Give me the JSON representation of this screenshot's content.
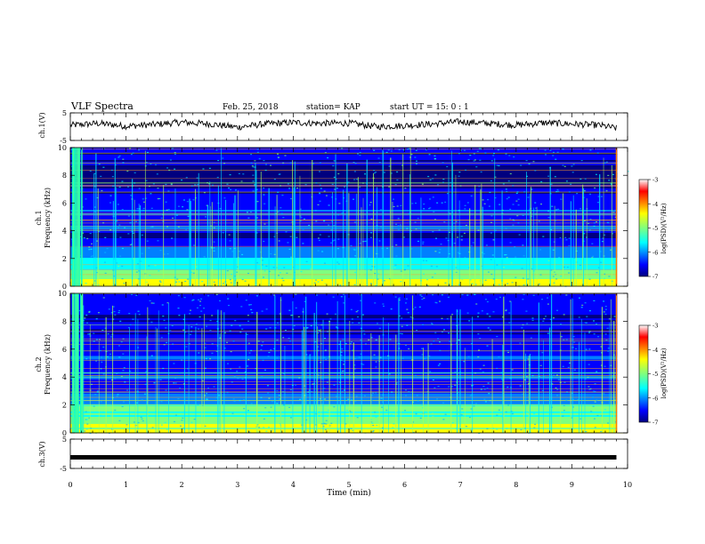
{
  "header": {
    "title": "VLF Spectra",
    "date": "Feb. 25, 2018",
    "station": "station= KAP",
    "start_ut": "start  UT =   15: 0   : 1"
  },
  "panels": {
    "ch1_wave_label": "ch.1(V)",
    "ch1_spec_label_a": "ch.1",
    "ch1_spec_label_b": "Frequency  (kHz)",
    "ch2_spec_label_a": "ch.2",
    "ch2_spec_label_b": "Frequency  (kHz)",
    "ch3_wave_label": "ch.3(V)",
    "colorbar_label": "log(PSD)(V²/Hz)"
  },
  "chart_data": [
    {
      "type": "line",
      "name": "ch1-waveform",
      "ylabel": "ch.1(V)",
      "ylim": [
        -5,
        5
      ],
      "yticks": [
        "5",
        "-5"
      ],
      "xlim": [
        0,
        10
      ],
      "x": [
        0,
        0.5,
        1,
        1.5,
        2,
        2.5,
        3,
        3.5,
        4,
        4.5,
        5,
        5.5,
        6,
        6.5,
        7,
        7.5,
        8,
        8.5,
        9,
        9.5,
        9.8
      ],
      "y": [
        0.5,
        1.2,
        0.2,
        0.8,
        1.6,
        1.0,
        -0.2,
        1.0,
        1.5,
        1.2,
        1.3,
        0.0,
        0.4,
        1.0,
        1.8,
        1.2,
        0.6,
        1.4,
        1.0,
        0.5,
        -0.6
      ]
    },
    {
      "type": "heatmap",
      "name": "ch1-spectrogram",
      "ylabel": "Frequency  (kHz)",
      "ylim": [
        0,
        10
      ],
      "yticks": [
        "0",
        "2",
        "4",
        "6",
        "8",
        "10"
      ],
      "xlim": [
        0,
        10
      ],
      "colorbar": {
        "ticks": [
          "-3",
          "-4",
          "-5",
          "-6",
          "-7"
        ],
        "range": [
          -7,
          -3
        ]
      }
    },
    {
      "type": "heatmap",
      "name": "ch2-spectrogram",
      "ylabel": "Frequency  (kHz)",
      "ylim": [
        0,
        10
      ],
      "yticks": [
        "0",
        "2",
        "4",
        "6",
        "8",
        "10"
      ],
      "xlim": [
        0,
        10
      ],
      "colorbar": {
        "ticks": [
          "-3",
          "-4",
          "-5",
          "-6",
          "-7"
        ],
        "range": [
          -7,
          -3
        ]
      }
    },
    {
      "type": "line",
      "name": "ch3-waveform",
      "ylabel": "ch.3(V)",
      "ylim": [
        -5,
        5
      ],
      "yticks": [
        "5",
        "-5"
      ],
      "xlim": [
        0,
        10
      ],
      "x": [
        0,
        9.8
      ],
      "y": [
        -1.2,
        -1.2
      ]
    }
  ],
  "xaxis": {
    "label": "Time  (min)",
    "ticks": [
      "0",
      "1",
      "2",
      "3",
      "4",
      "5",
      "6",
      "7",
      "8",
      "9",
      "10"
    ]
  },
  "colors": {
    "colormap": [
      "#00007f",
      "#0000ff",
      "#007fff",
      "#00ffff",
      "#7fff7f",
      "#ffff00",
      "#ff7f00",
      "#ff0000",
      "#7f0000"
    ]
  }
}
